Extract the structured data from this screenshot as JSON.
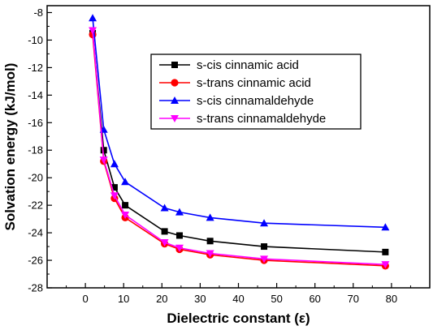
{
  "chart_data": {
    "type": "line",
    "title": "",
    "xlabel": "Dielectric constant (ε)",
    "ylabel": "Solvation energy (kJ/mol)",
    "xlim": [
      -10,
      90
    ],
    "ylim": [
      -28,
      -7.5
    ],
    "xticks": [
      0,
      10,
      20,
      30,
      40,
      50,
      60,
      70,
      80
    ],
    "yticks": [
      -28,
      -26,
      -24,
      -22,
      -20,
      -18,
      -16,
      -14,
      -12,
      -10,
      -8
    ],
    "grid": false,
    "legend_position": "top-right",
    "x": [
      1.9,
      4.8,
      7.6,
      10.4,
      20.7,
      24.6,
      32.6,
      46.7,
      78.4
    ],
    "series": [
      {
        "name": "s-cis cinnamic acid",
        "color": "#000000",
        "marker": "square",
        "values": [
          -9.5,
          -18.0,
          -20.7,
          -22.0,
          -23.9,
          -24.2,
          -24.6,
          -25.0,
          -25.4
        ]
      },
      {
        "name": "s-trans cinnamic acid",
        "color": "#ff0000",
        "marker": "circle",
        "values": [
          -9.6,
          -18.8,
          -21.5,
          -22.9,
          -24.8,
          -25.2,
          -25.6,
          -26.0,
          -26.4
        ]
      },
      {
        "name": "s-cis cinnamaldehyde",
        "color": "#0000ff",
        "marker": "triangle-up",
        "values": [
          -8.4,
          -16.5,
          -19.0,
          -20.3,
          -22.2,
          -22.5,
          -22.9,
          -23.3,
          -23.6
        ]
      },
      {
        "name": "s-trans cinnamaldehyde",
        "color": "#ff00ff",
        "marker": "triangle-down",
        "values": [
          -9.3,
          -18.7,
          -21.3,
          -22.7,
          -24.7,
          -25.1,
          -25.5,
          -25.9,
          -26.3
        ]
      }
    ]
  }
}
